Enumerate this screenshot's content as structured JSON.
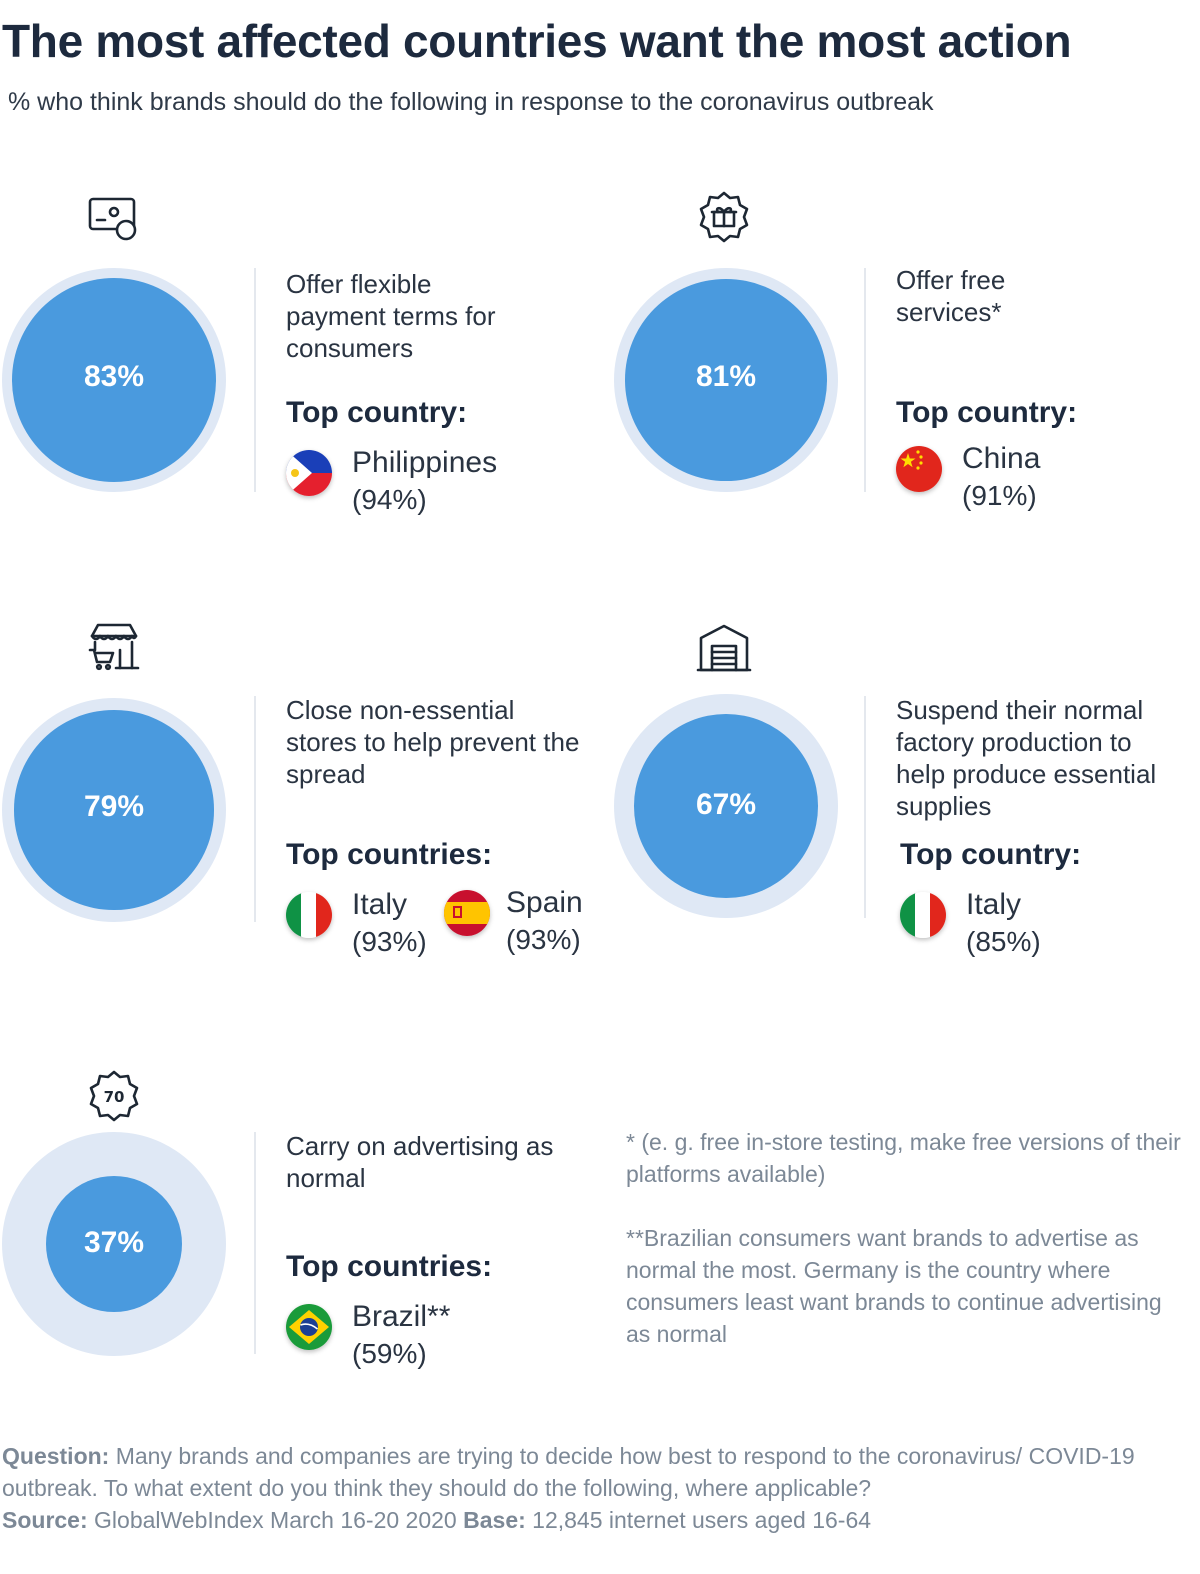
{
  "title": "The most affected countries want the most action",
  "subtitle": "% who think brands should do the following in response to the coronavirus outbreak",
  "chart_data": {
    "type": "bubble",
    "unit": "%",
    "items": [
      {
        "label": "Offer flexible payment terms for consumers",
        "value": 83,
        "value_label": "83%",
        "icon": "credit-card-icon",
        "top_heading": "Top country:",
        "countries": [
          {
            "name": "Philippines",
            "value": 94,
            "value_label": "(94%)",
            "flag": "philippines-flag-icon"
          }
        ]
      },
      {
        "label": "Offer free services*",
        "value": 81,
        "value_label": "81%",
        "icon": "gift-badge-icon",
        "top_heading": "Top country:",
        "countries": [
          {
            "name": "China",
            "value": 91,
            "value_label": "(91%)",
            "flag": "china-flag-icon"
          }
        ]
      },
      {
        "label": "Close non-essential stores to help prevent the spread",
        "value": 79,
        "value_label": "79%",
        "icon": "store-cart-icon",
        "top_heading": "Top countries:",
        "countries": [
          {
            "name": "Italy",
            "value": 93,
            "value_label": "(93%)",
            "flag": "italy-flag-icon"
          },
          {
            "name": "Spain",
            "value": 93,
            "value_label": "(93%)",
            "flag": "spain-flag-icon"
          }
        ]
      },
      {
        "label": "Suspend their normal factory production to help produce essential supplies",
        "value": 67,
        "value_label": "67%",
        "icon": "warehouse-icon",
        "top_heading": "Top country:",
        "countries": [
          {
            "name": "Italy",
            "value": 85,
            "value_label": "(85%)",
            "flag": "italy-flag-icon"
          }
        ]
      },
      {
        "label": "Carry on advertising as normal",
        "value": 37,
        "value_label": "37%",
        "icon": "badge-70-icon",
        "top_heading": "Top countries:",
        "countries": [
          {
            "name": "Brazil**",
            "value": 59,
            "value_label": "(59%)",
            "flag": "brazil-flag-icon"
          }
        ]
      }
    ]
  },
  "notes": {
    "note1": "* (e. g. free in-store testing, make free versions of their platforms available)",
    "note2": "**Brazilian consumers want brands to advertise as normal the most. Germany is the country where consumers least want brands to continue advertising as normal"
  },
  "footer": {
    "question_label": "Question:",
    "question_text": "Many brands and companies are trying to decide how best to respond to the coronavirus/ COVID-19 outbreak. To what extent do you think they should do the following, where applicable?",
    "source_label": "Source:",
    "source_text": "GlobalWebIndex March 16-20 2020",
    "base_label": "Base:",
    "base_text": "12,845 internet users aged 16-64"
  },
  "colors": {
    "disc": "#4a9ade",
    "ring": "#dfe8f5",
    "title": "#1d2a3e",
    "muted": "#7c8896"
  }
}
